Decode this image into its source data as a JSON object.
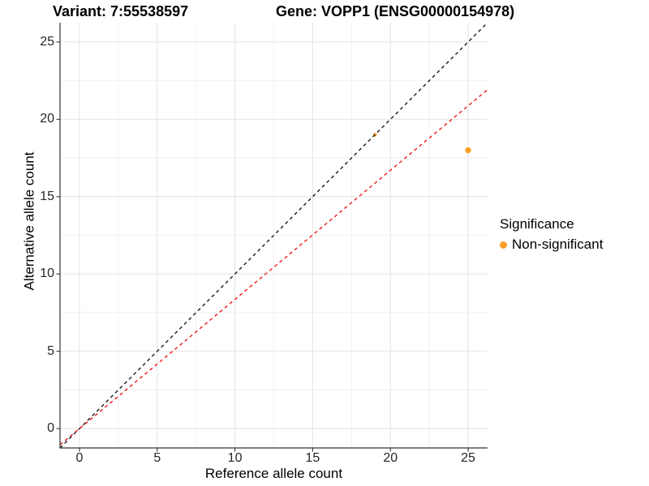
{
  "header": {
    "variant_title": "Variant: 7:55538597",
    "gene_title": "Gene: VOPP1 (ENSG00000154978)"
  },
  "chart_data": {
    "type": "scatter",
    "xlabel": "Reference allele count",
    "ylabel": "Alternative allele count",
    "xlim": [
      -1.25,
      26.25
    ],
    "ylim": [
      -1.25,
      26.25
    ],
    "x_ticks": [
      0,
      5,
      10,
      15,
      20,
      25
    ],
    "y_ticks": [
      0,
      5,
      10,
      15,
      20,
      25
    ],
    "minor_gridlines": [
      2.5,
      7.5,
      12.5,
      17.5,
      22.5
    ],
    "grid": true,
    "points": [
      {
        "x": 19,
        "y": 19,
        "radius": 2.3,
        "series": "Non-significant"
      },
      {
        "x": 25,
        "y": 18,
        "radius": 3.7,
        "series": "Non-significant"
      }
    ],
    "lines": [
      {
        "slope": 1.0,
        "intercept": 0,
        "color": "#1a1a1a",
        "style": "dashed"
      },
      {
        "slope": 0.835,
        "intercept": 0,
        "color": "#f01818",
        "style": "dashed"
      }
    ],
    "legend": {
      "title": "Significance",
      "position": "right",
      "items": [
        {
          "label": "Non-significant",
          "color": "#faa028"
        }
      ]
    },
    "style_colors": {
      "major_grid": "#e4e4e4",
      "minor_grid": "#f1f1f1",
      "axis_line": "#333333",
      "tick_text": "#262626"
    }
  }
}
